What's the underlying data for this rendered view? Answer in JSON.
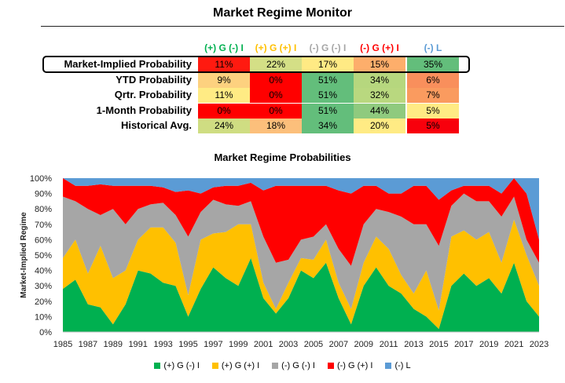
{
  "page_title": "Market Regime Monitor",
  "table": {
    "columns": [
      {
        "label": "(+) G (-) I",
        "color": "#00b050"
      },
      {
        "label": "(+) G (+) I",
        "color": "#ffc000"
      },
      {
        "label": "(-) G (-) I",
        "color": "#a6a6a6"
      },
      {
        "label": "(-) G (+) I",
        "color": "#ff0000"
      },
      {
        "label": "(-) L",
        "color": "#5b9bd5"
      }
    ],
    "rows": [
      {
        "label": "Market-Implied Probability",
        "values": [
          "11%",
          "22%",
          "17%",
          "15%",
          "35%"
        ],
        "colors": [
          "#ff1a10",
          "#d4df86",
          "#ffea84",
          "#fdae6b",
          "#63be7b"
        ]
      },
      {
        "label": "YTD Probability",
        "values": [
          "9%",
          "0%",
          "51%",
          "34%",
          "6%"
        ],
        "colors": [
          "#fdd17f",
          "#ff0000",
          "#63be7b",
          "#b6d77e",
          "#f98f5c"
        ]
      },
      {
        "label": "Qrtr. Probability",
        "values": [
          "11%",
          "0%",
          "51%",
          "32%",
          "7%"
        ],
        "colors": [
          "#ffeb84",
          "#ff0000",
          "#63be7b",
          "#b9d87f",
          "#fa9b5f"
        ]
      },
      {
        "label": "1-Month Probability",
        "values": [
          "0%",
          "0%",
          "51%",
          "44%",
          "5%"
        ],
        "colors": [
          "#ff0000",
          "#ff0000",
          "#63be7b",
          "#8fca7e",
          "#ffeb84"
        ]
      },
      {
        "label": "Historical Avg.",
        "values": [
          "24%",
          "18%",
          "34%",
          "20%",
          "5%"
        ],
        "colors": [
          "#cfdd82",
          "#fcbf7b",
          "#63be7b",
          "#ffeb84",
          "#f8000c"
        ]
      }
    ]
  },
  "chart_title": "Market Regime Probabilities",
  "chart_data": {
    "type": "area",
    "stacked": true,
    "title": "Market Regime Probabilities",
    "xlabel": "",
    "ylabel": "Market-Implied Regime",
    "xlim": [
      1985,
      2023
    ],
    "ylim": [
      0,
      100
    ],
    "y_ticks": [
      "0%",
      "10%",
      "20%",
      "30%",
      "40%",
      "50%",
      "60%",
      "70%",
      "80%",
      "90%",
      "100%"
    ],
    "x_ticks": [
      "1985",
      "1987",
      "1989",
      "1991",
      "1993",
      "1995",
      "1997",
      "1999",
      "2001",
      "2003",
      "2005",
      "2007",
      "2009",
      "2011",
      "2013",
      "2015",
      "2017",
      "2019",
      "2021",
      "2023"
    ],
    "grid": false,
    "legend_position": "bottom",
    "x": [
      1985,
      1986,
      1987,
      1988,
      1989,
      1990,
      1991,
      1992,
      1993,
      1994,
      1995,
      1996,
      1997,
      1998,
      1999,
      2000,
      2001,
      2002,
      2003,
      2004,
      2005,
      2006,
      2007,
      2008,
      2009,
      2010,
      2011,
      2012,
      2013,
      2014,
      2015,
      2016,
      2017,
      2018,
      2019,
      2020,
      2021,
      2022,
      2023
    ],
    "series": [
      {
        "name": "(+) G (-) I",
        "color": "#00b050",
        "values": [
          28,
          34,
          18,
          16,
          5,
          18,
          40,
          38,
          32,
          30,
          10,
          28,
          42,
          35,
          30,
          48,
          22,
          12,
          22,
          40,
          35,
          45,
          22,
          5,
          30,
          42,
          30,
          25,
          15,
          10,
          2,
          30,
          38,
          30,
          35,
          25,
          45,
          20,
          10
        ]
      },
      {
        "name": "(+) G (+) I",
        "color": "#ffc000",
        "values": [
          20,
          26,
          20,
          40,
          30,
          22,
          20,
          30,
          36,
          28,
          14,
          32,
          22,
          30,
          40,
          22,
          10,
          3,
          10,
          8,
          12,
          15,
          10,
          10,
          15,
          20,
          24,
          12,
          10,
          30,
          12,
          32,
          28,
          30,
          30,
          20,
          28,
          30,
          20
        ]
      },
      {
        "name": "(-) G (-) I",
        "color": "#a6a6a6",
        "values": [
          40,
          25,
          42,
          20,
          45,
          30,
          20,
          15,
          16,
          18,
          38,
          18,
          22,
          18,
          12,
          15,
          30,
          30,
          15,
          12,
          15,
          10,
          22,
          28,
          25,
          18,
          24,
          38,
          45,
          30,
          42,
          20,
          24,
          25,
          20,
          30,
          15,
          10,
          15
        ]
      },
      {
        "name": "(-) G (+) I",
        "color": "#ff0000",
        "values": [
          12,
          10,
          15,
          20,
          15,
          25,
          15,
          12,
          10,
          15,
          30,
          12,
          8,
          12,
          13,
          12,
          30,
          50,
          48,
          35,
          33,
          25,
          38,
          47,
          25,
          15,
          12,
          15,
          25,
          25,
          30,
          10,
          5,
          10,
          10,
          15,
          12,
          30,
          15
        ]
      },
      {
        "name": "(-) L",
        "color": "#5b9bd5",
        "values": [
          0,
          5,
          5,
          4,
          5,
          5,
          5,
          5,
          6,
          9,
          8,
          10,
          6,
          5,
          5,
          3,
          8,
          5,
          5,
          5,
          5,
          5,
          8,
          10,
          5,
          5,
          10,
          10,
          5,
          5,
          14,
          8,
          5,
          5,
          5,
          10,
          0,
          10,
          40
        ]
      }
    ]
  }
}
